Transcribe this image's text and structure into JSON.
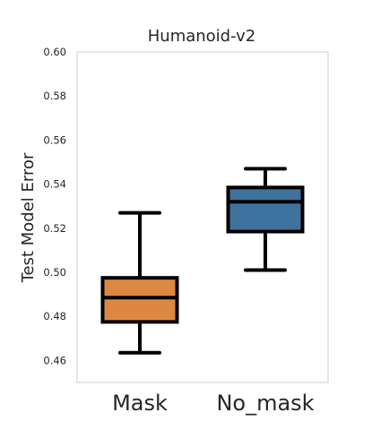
{
  "chart_data": {
    "type": "box",
    "title": "Humanoid-v2",
    "xlabel": "",
    "ylabel": "Test Model Error",
    "ylim": [
      0.45,
      0.6
    ],
    "yticks": [
      0.46,
      0.48,
      0.5,
      0.52,
      0.54,
      0.56,
      0.58,
      0.6
    ],
    "ytick_labels": [
      "0.46",
      "0.48",
      "0.50",
      "0.52",
      "0.54",
      "0.56",
      "0.58",
      "0.60"
    ],
    "categories": [
      "Mask",
      "No_mask"
    ],
    "grid": false,
    "boxes": [
      {
        "category": "Mask",
        "whisker_low": 0.4635,
        "q1": 0.4775,
        "median": 0.4885,
        "q3": 0.4975,
        "whisker_high": 0.527,
        "color": "#dd8842"
      },
      {
        "category": "No_mask",
        "whisker_low": 0.501,
        "q1": 0.5185,
        "median": 0.532,
        "q3": 0.5385,
        "whisker_high": 0.547,
        "color": "#3f729c"
      }
    ]
  }
}
